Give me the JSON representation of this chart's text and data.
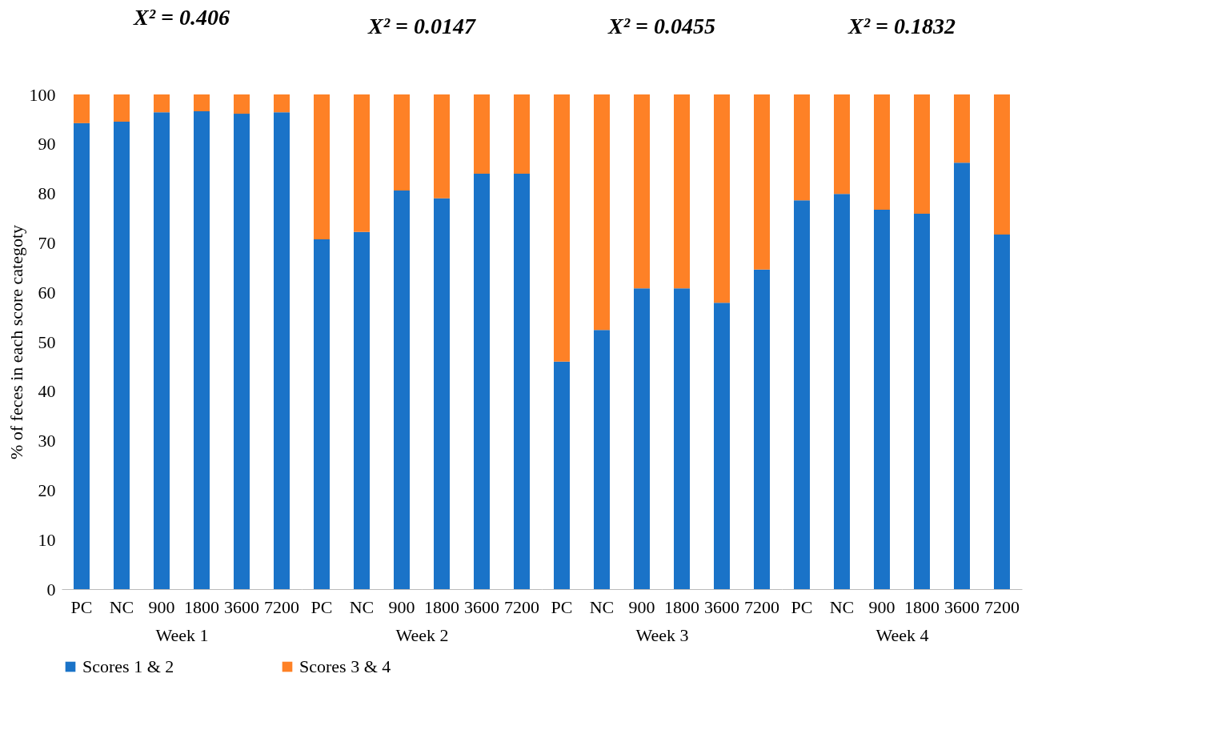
{
  "chart_data": [
    {
      "type": "bar",
      "stacked": true,
      "title": "X² = 0.406",
      "xlabel": "Week 1",
      "ylabel": "% of feces in each score categoty",
      "categories": [
        "PC",
        "NC",
        "900",
        "1800",
        "3600",
        "7200"
      ],
      "ylim": [
        0,
        100
      ],
      "yticks": [
        0,
        10,
        20,
        30,
        40,
        50,
        60,
        70,
        80,
        90,
        100
      ],
      "legend": "bottom",
      "series": [
        {
          "name": "Scores 1 & 2",
          "color": "#1a73c8",
          "values": [
            94.2,
            94.5,
            96.4,
            96.6,
            96.1,
            96.4
          ]
        },
        {
          "name": "Scores 3 & 4",
          "color": "#fe8126",
          "values": [
            5.8,
            5.5,
            3.6,
            3.4,
            3.9,
            3.6
          ]
        }
      ]
    },
    {
      "type": "bar",
      "stacked": true,
      "title": "X² = 0.0147",
      "xlabel": "Week 2",
      "categories": [
        "PC",
        "NC",
        "900",
        "1800",
        "3600",
        "7200"
      ],
      "ylim": [
        0,
        100
      ],
      "tick_labels": "x",
      "legend": "bottom",
      "series": [
        {
          "name": "Scores 1 & 2",
          "color": "#1a73c8",
          "values": [
            70.7,
            72.2,
            80.6,
            79.0,
            84.0,
            84.0
          ]
        },
        {
          "name": "Scores 3 & 4",
          "color": "#fe8126",
          "values": [
            29.3,
            27.8,
            19.4,
            21.0,
            16.0,
            16.0
          ]
        }
      ]
    },
    {
      "type": "bar",
      "stacked": true,
      "title": "X² = 0.0455",
      "xlabel": "Week 3",
      "categories": [
        "PC",
        "NC",
        "900",
        "1800",
        "3600",
        "7200"
      ],
      "ylim": [
        0,
        100
      ],
      "tick_labels": "x",
      "legend": "bottom",
      "series": [
        {
          "name": "Scores 1 & 2",
          "color": "#1a73c8",
          "values": [
            46.0,
            52.4,
            60.8,
            60.8,
            57.9,
            64.6
          ]
        },
        {
          "name": "Scores 3 & 4",
          "color": "#fe8126",
          "values": [
            54.0,
            47.6,
            39.2,
            39.2,
            42.1,
            35.4
          ]
        }
      ]
    },
    {
      "type": "bar",
      "stacked": true,
      "title": "X² = 0.1832",
      "xlabel": "Week 4",
      "categories": [
        "PC",
        "NC",
        "900",
        "1800",
        "3600",
        "7200"
      ],
      "ylim": [
        0,
        100
      ],
      "tick_labels": "x",
      "legend": "bottom",
      "series": [
        {
          "name": "Scores 1 & 2",
          "color": "#1a73c8",
          "values": [
            78.6,
            79.9,
            76.7,
            75.9,
            86.2,
            71.7
          ]
        },
        {
          "name": "Scores 3 & 4",
          "color": "#fe8126",
          "values": [
            21.4,
            20.1,
            23.3,
            24.1,
            13.8,
            28.3
          ]
        }
      ]
    }
  ]
}
